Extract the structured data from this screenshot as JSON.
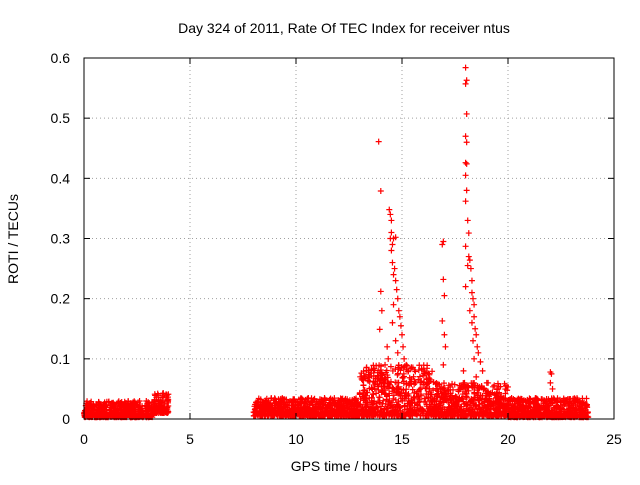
{
  "chart_data": {
    "type": "scatter",
    "title": "Day 324 of 2011, Rate Of TEC Index for receiver ntus",
    "xlabel": "GPS time / hours",
    "ylabel": "ROTI / TECUs",
    "xlim": [
      0,
      25
    ],
    "ylim": [
      0,
      0.6
    ],
    "x_ticks": [
      0,
      5,
      10,
      15,
      20,
      25
    ],
    "x_tick_labels": [
      "0",
      "5",
      "10",
      "15",
      "20",
      "25"
    ],
    "y_ticks": [
      0,
      0.1,
      0.2,
      0.3,
      0.4,
      0.5,
      0.6
    ],
    "y_tick_labels": [
      "0",
      "0.1",
      "0.2",
      "0.3",
      "0.4",
      "0.5",
      "0.6"
    ],
    "grid": true,
    "legend": "none",
    "marker": "+",
    "color": "#ff0000",
    "dense_regions": [
      {
        "x_range": [
          0.0,
          3.3
        ],
        "y_range": [
          0.003,
          0.03
        ]
      },
      {
        "x_range": [
          3.3,
          4.0
        ],
        "y_range": [
          0.01,
          0.045
        ]
      },
      {
        "x_range": [
          8.0,
          13.0
        ],
        "y_range": [
          0.005,
          0.035
        ]
      },
      {
        "x_range": [
          13.0,
          16.5
        ],
        "y_range": [
          0.005,
          0.09
        ]
      },
      {
        "x_range": [
          16.5,
          20.0
        ],
        "y_range": [
          0.005,
          0.06
        ]
      },
      {
        "x_range": [
          20.0,
          23.8
        ],
        "y_range": [
          0.003,
          0.035
        ]
      }
    ],
    "series": [
      {
        "values": [
          [
            13.9,
            0.461
          ],
          [
            14.0,
            0.379
          ],
          [
            14.0,
            0.212
          ],
          [
            13.95,
            0.149
          ],
          [
            14.05,
            0.18
          ],
          [
            14.4,
            0.348
          ],
          [
            14.45,
            0.34
          ],
          [
            14.5,
            0.33
          ],
          [
            14.5,
            0.31
          ],
          [
            14.45,
            0.3
          ],
          [
            14.55,
            0.29
          ],
          [
            14.5,
            0.28
          ],
          [
            14.6,
            0.3
          ],
          [
            14.7,
            0.302
          ],
          [
            14.55,
            0.26
          ],
          [
            14.65,
            0.25
          ],
          [
            14.6,
            0.24
          ],
          [
            14.7,
            0.23
          ],
          [
            14.75,
            0.215
          ],
          [
            14.8,
            0.2
          ],
          [
            14.6,
            0.19
          ],
          [
            14.85,
            0.18
          ],
          [
            14.9,
            0.17
          ],
          [
            14.55,
            0.16
          ],
          [
            14.95,
            0.155
          ],
          [
            15.0,
            0.14
          ],
          [
            14.7,
            0.13
          ],
          [
            15.05,
            0.12
          ],
          [
            14.8,
            0.11
          ],
          [
            15.1,
            0.1
          ],
          [
            14.3,
            0.12
          ],
          [
            14.2,
            0.09
          ],
          [
            14.35,
            0.1
          ],
          [
            15.2,
            0.09
          ],
          [
            15.3,
            0.08
          ],
          [
            16.95,
            0.295
          ],
          [
            16.9,
            0.29
          ],
          [
            16.95,
            0.232
          ],
          [
            17.0,
            0.205
          ],
          [
            16.9,
            0.163
          ],
          [
            17.0,
            0.14
          ],
          [
            17.05,
            0.12
          ],
          [
            16.95,
            0.09
          ],
          [
            18.0,
            0.584
          ],
          [
            18.05,
            0.563
          ],
          [
            18.0,
            0.557
          ],
          [
            18.05,
            0.507
          ],
          [
            18.0,
            0.47
          ],
          [
            18.05,
            0.46
          ],
          [
            18.0,
            0.426
          ],
          [
            18.05,
            0.424
          ],
          [
            18.0,
            0.405
          ],
          [
            18.05,
            0.38
          ],
          [
            18.0,
            0.362
          ],
          [
            18.1,
            0.33
          ],
          [
            18.15,
            0.309
          ],
          [
            18.0,
            0.287
          ],
          [
            18.15,
            0.27
          ],
          [
            18.2,
            0.264
          ],
          [
            18.1,
            0.255
          ],
          [
            18.25,
            0.25
          ],
          [
            18.3,
            0.23
          ],
          [
            18.0,
            0.22
          ],
          [
            18.3,
            0.21
          ],
          [
            18.35,
            0.2
          ],
          [
            18.4,
            0.19
          ],
          [
            18.2,
            0.18
          ],
          [
            18.4,
            0.17
          ],
          [
            18.3,
            0.16
          ],
          [
            18.45,
            0.15
          ],
          [
            18.5,
            0.14
          ],
          [
            18.35,
            0.13
          ],
          [
            18.55,
            0.12
          ],
          [
            18.6,
            0.11
          ],
          [
            18.4,
            0.1
          ],
          [
            18.7,
            0.095
          ],
          [
            18.8,
            0.08
          ],
          [
            18.5,
            0.07
          ],
          [
            19.0,
            0.06
          ],
          [
            17.9,
            0.08
          ],
          [
            17.95,
            0.06
          ],
          [
            22.0,
            0.078
          ],
          [
            22.05,
            0.075
          ],
          [
            22.0,
            0.06
          ],
          [
            22.1,
            0.05
          ]
        ]
      }
    ]
  }
}
